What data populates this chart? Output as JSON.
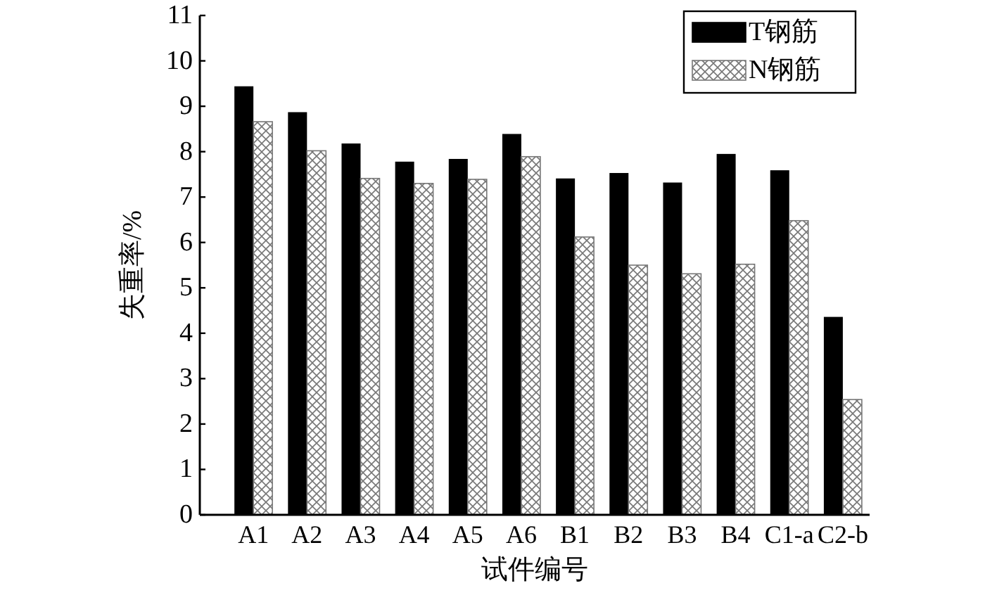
{
  "chart_data": {
    "type": "bar",
    "xlabel": "试件编号",
    "ylabel": "失重率/%",
    "categories": [
      "A1",
      "A2",
      "A3",
      "A4",
      "A5",
      "A6",
      "B1",
      "B2",
      "B3",
      "B4",
      "C1-a",
      "C2-b"
    ],
    "series": [
      {
        "name": "T钢筋",
        "color": "#000000",
        "values": [
          9.44,
          8.87,
          8.18,
          7.78,
          7.84,
          8.39,
          7.41,
          7.53,
          7.32,
          7.95,
          7.59,
          4.36
        ]
      },
      {
        "name": "N钢筋",
        "color": "#777777",
        "values": [
          8.66,
          8.02,
          7.41,
          7.3,
          7.39,
          7.89,
          6.12,
          5.5,
          5.31,
          5.52,
          6.48,
          2.54
        ]
      }
    ],
    "ylim": [
      0,
      11
    ],
    "yticks": [
      0,
      1,
      2,
      3,
      4,
      5,
      6,
      7,
      8,
      9,
      10,
      11
    ],
    "grid": false,
    "legend": "top right"
  }
}
